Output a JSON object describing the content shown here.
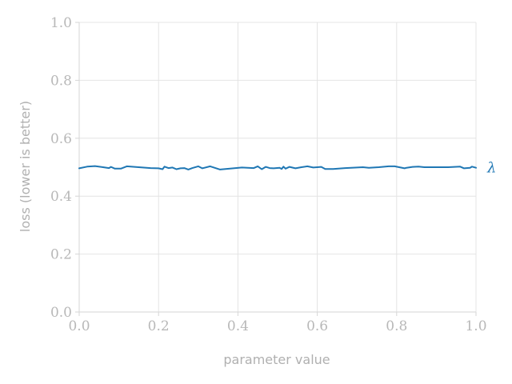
{
  "chart_data": {
    "type": "line",
    "title": "",
    "xlabel": "parameter value",
    "ylabel": "loss (lower is better)",
    "xlim": [
      0.0,
      1.0
    ],
    "ylim": [
      0.0,
      1.0
    ],
    "xticks": [
      "0.0",
      "0.2",
      "0.4",
      "0.6",
      "0.8",
      "1.0"
    ],
    "yticks": [
      "0.0",
      "0.2",
      "0.4",
      "0.6",
      "0.8",
      "1.0"
    ],
    "grid": true,
    "series": [
      {
        "name": "λ",
        "color": "#1f77b4",
        "x": [
          0.0,
          0.02,
          0.04,
          0.06,
          0.075,
          0.08,
          0.09,
          0.105,
          0.12,
          0.14,
          0.16,
          0.18,
          0.2,
          0.21,
          0.215,
          0.225,
          0.235,
          0.245,
          0.255,
          0.265,
          0.275,
          0.285,
          0.3,
          0.31,
          0.33,
          0.355,
          0.38,
          0.41,
          0.44,
          0.45,
          0.46,
          0.47,
          0.48,
          0.49,
          0.505,
          0.51,
          0.515,
          0.52,
          0.53,
          0.545,
          0.56,
          0.575,
          0.59,
          0.61,
          0.62,
          0.64,
          0.67,
          0.7,
          0.715,
          0.73,
          0.755,
          0.78,
          0.795,
          0.82,
          0.825,
          0.84,
          0.855,
          0.87,
          0.9,
          0.93,
          0.96,
          0.97,
          0.985,
          0.99,
          1.0
        ],
        "y": [
          0.496,
          0.502,
          0.504,
          0.5,
          0.497,
          0.501,
          0.495,
          0.495,
          0.503,
          0.501,
          0.499,
          0.497,
          0.496,
          0.493,
          0.502,
          0.497,
          0.499,
          0.493,
          0.496,
          0.497,
          0.492,
          0.497,
          0.503,
          0.496,
          0.503,
          0.492,
          0.495,
          0.499,
          0.497,
          0.503,
          0.493,
          0.501,
          0.497,
          0.496,
          0.498,
          0.494,
          0.502,
          0.495,
          0.501,
          0.496,
          0.5,
          0.503,
          0.499,
          0.501,
          0.494,
          0.494,
          0.497,
          0.499,
          0.5,
          0.498,
          0.5,
          0.503,
          0.503,
          0.496,
          0.498,
          0.501,
          0.502,
          0.5,
          0.5,
          0.5,
          0.502,
          0.496,
          0.498,
          0.502,
          0.498
        ]
      }
    ]
  }
}
